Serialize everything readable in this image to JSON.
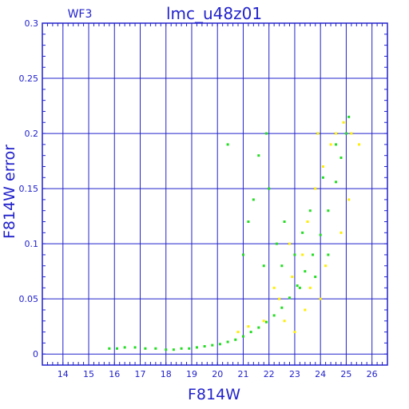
{
  "chart_data": {
    "type": "scatter",
    "title": "lmc_u48z01",
    "corner_label": "WF3",
    "xlabel": "F814W",
    "ylabel": "F814W error",
    "xlim": [
      13.2,
      26.6
    ],
    "ylim": [
      -0.01,
      0.3
    ],
    "grid": true,
    "x_ticks": [
      14,
      15,
      16,
      17,
      18,
      19,
      20,
      21,
      22,
      23,
      24,
      25,
      26
    ],
    "x_tick_labels": [
      "14",
      "15",
      "16",
      "17",
      "18",
      "19",
      "20",
      "21",
      "22",
      "23",
      "24",
      "25",
      "26"
    ],
    "y_ticks": [
      0,
      0.05,
      0.1,
      0.15,
      0.2,
      0.25,
      0.3
    ],
    "y_tick_labels": [
      "0",
      "0.05",
      "0.1",
      "0.15",
      "0.2",
      "0.25",
      "0.3"
    ],
    "colors": {
      "axis": "#2222cc",
      "grid": "#2222cc",
      "series_main": "#22dd22",
      "series_secondary": "#ffee00"
    },
    "series": [
      {
        "color": "#22dd22",
        "values": [
          [
            15.8,
            0.005
          ],
          [
            16.1,
            0.005
          ],
          [
            16.4,
            0.006
          ],
          [
            16.8,
            0.006
          ],
          [
            17.2,
            0.005
          ],
          [
            17.6,
            0.005
          ],
          [
            18.0,
            0.004
          ],
          [
            18.3,
            0.004
          ],
          [
            18.6,
            0.005
          ],
          [
            18.9,
            0.005
          ],
          [
            19.2,
            0.006
          ],
          [
            19.5,
            0.007
          ],
          [
            19.8,
            0.008
          ],
          [
            20.1,
            0.009
          ],
          [
            20.4,
            0.011
          ],
          [
            20.7,
            0.013
          ],
          [
            21.0,
            0.016
          ],
          [
            21.3,
            0.02
          ],
          [
            21.6,
            0.024
          ],
          [
            21.9,
            0.029
          ],
          [
            22.2,
            0.035
          ],
          [
            22.5,
            0.042
          ],
          [
            22.8,
            0.051
          ],
          [
            23.1,
            0.062
          ],
          [
            23.4,
            0.075
          ],
          [
            23.7,
            0.09
          ],
          [
            24.0,
            0.108
          ],
          [
            24.3,
            0.13
          ],
          [
            24.6,
            0.156
          ],
          [
            24.8,
            0.178
          ],
          [
            25.0,
            0.2
          ],
          [
            25.1,
            0.215
          ],
          [
            21.0,
            0.09
          ],
          [
            21.2,
            0.12
          ],
          [
            21.4,
            0.14
          ],
          [
            21.6,
            0.18
          ],
          [
            21.9,
            0.2
          ],
          [
            22.0,
            0.15
          ],
          [
            22.3,
            0.1
          ],
          [
            22.6,
            0.12
          ],
          [
            23.0,
            0.09
          ],
          [
            23.3,
            0.11
          ],
          [
            23.6,
            0.13
          ],
          [
            23.8,
            0.07
          ],
          [
            24.1,
            0.16
          ],
          [
            24.3,
            0.09
          ],
          [
            24.6,
            0.19
          ],
          [
            20.4,
            0.19
          ],
          [
            21.8,
            0.08
          ],
          [
            22.5,
            0.08
          ],
          [
            23.2,
            0.06
          ],
          [
            23.9,
            0.2
          ]
        ]
      },
      {
        "color": "#ffee00",
        "values": [
          [
            20.8,
            0.02
          ],
          [
            21.2,
            0.025
          ],
          [
            21.8,
            0.03
          ],
          [
            22.4,
            0.05
          ],
          [
            22.9,
            0.07
          ],
          [
            23.3,
            0.09
          ],
          [
            23.5,
            0.12
          ],
          [
            23.8,
            0.15
          ],
          [
            24.1,
            0.17
          ],
          [
            24.4,
            0.19
          ],
          [
            24.6,
            0.2
          ],
          [
            24.9,
            0.21
          ],
          [
            25.2,
            0.2
          ],
          [
            25.5,
            0.19
          ],
          [
            22.6,
            0.03
          ],
          [
            23.0,
            0.02
          ],
          [
            23.6,
            0.06
          ],
          [
            24.2,
            0.08
          ],
          [
            24.8,
            0.11
          ],
          [
            25.1,
            0.14
          ],
          [
            23.9,
            0.2
          ],
          [
            22.2,
            0.06
          ],
          [
            22.8,
            0.1
          ],
          [
            23.4,
            0.04
          ],
          [
            24.0,
            0.05
          ]
        ]
      }
    ]
  }
}
